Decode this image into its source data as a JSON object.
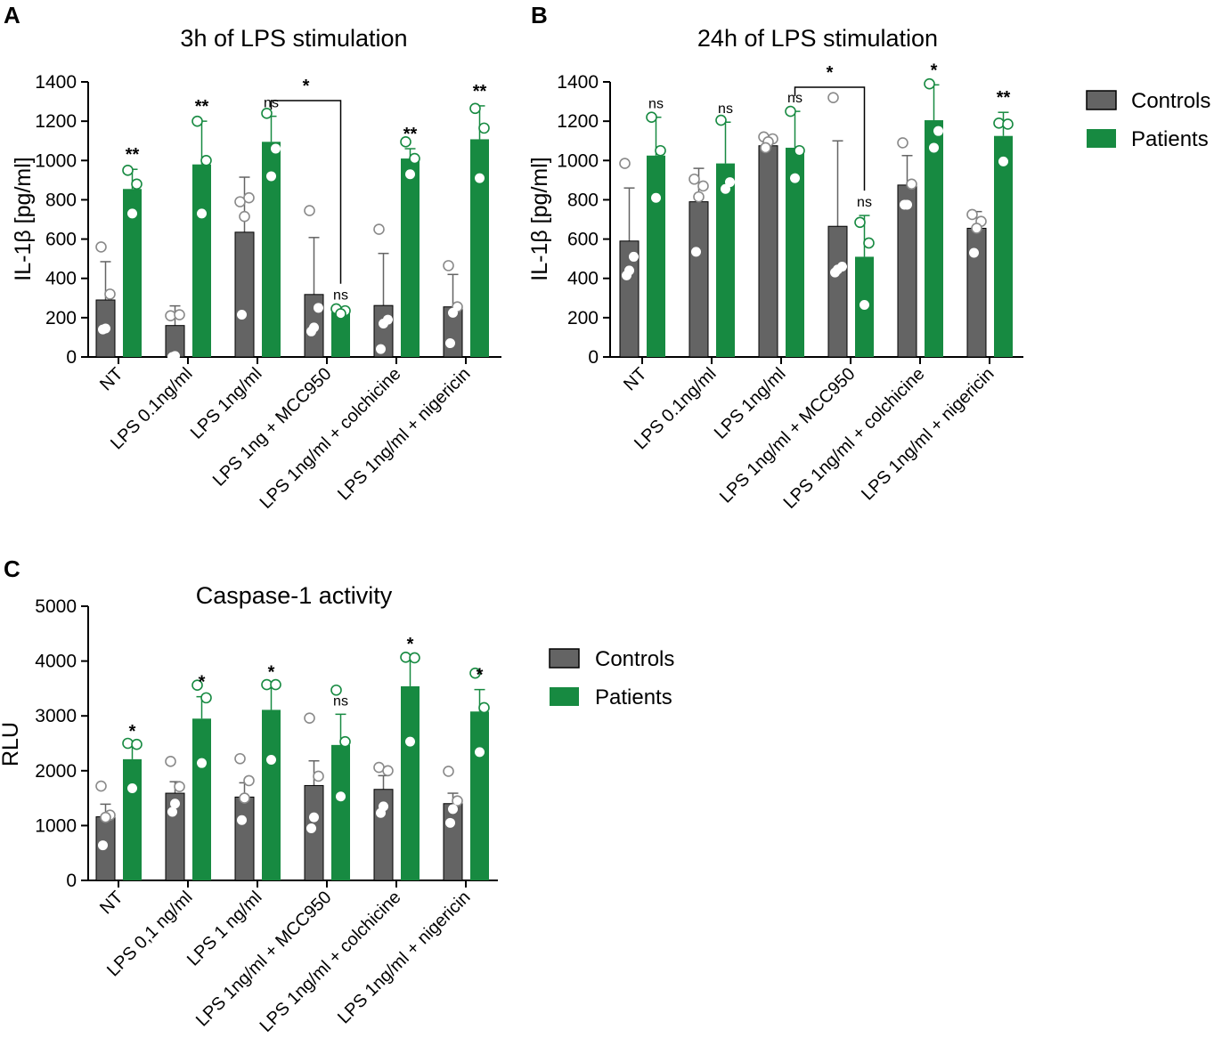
{
  "colors": {
    "controls": "#646464",
    "patients": "#178a41",
    "axis": "#000000",
    "point_open": "#ffffff"
  },
  "chart_data": [
    {
      "id": "A",
      "type": "bar",
      "panel_letter": "A",
      "title": "3h of LPS stimulation",
      "ylabel": "IL-1β [pg/ml]",
      "ylim": [
        0,
        1400
      ],
      "yticks": [
        0,
        200,
        400,
        600,
        800,
        1000,
        1200,
        1400
      ],
      "categories": [
        "NT",
        "LPS 0.1ng/ml",
        "LPS 1ng/ml",
        "LPS 1ng + MCC950",
        "LPS 1ng/ml + colchicine",
        "LPS 1ng/ml + nigericin"
      ],
      "series": [
        {
          "name": "Controls",
          "values": [
            290,
            160,
            635,
            318,
            262,
            255
          ],
          "errors": [
            195,
            100,
            280,
            290,
            265,
            165
          ],
          "points": [
            [
              560,
              320,
              145,
              140
            ],
            [
              210,
              215,
              5,
              0
            ],
            [
              790,
              810,
              715,
              215
            ],
            [
              745,
              250,
              150,
              130
            ],
            [
              650,
              190,
              170,
              40
            ],
            [
              465,
              255,
              225,
              70
            ]
          ]
        },
        {
          "name": "Patients",
          "values": [
            855,
            980,
            1095,
            228,
            1010,
            1108
          ],
          "errors": [
            100,
            220,
            130,
            18,
            50,
            170
          ],
          "points": [
            [
              950,
              880,
              730
            ],
            [
              1200,
              1000,
              730
            ],
            [
              1240,
              1060,
              920
            ],
            [
              245,
              235,
              220
            ],
            [
              1095,
              1010,
              930
            ],
            [
              1265,
              1165,
              910
            ]
          ]
        }
      ],
      "significance": [
        "**",
        "**",
        "ns",
        "ns",
        "**",
        "**"
      ],
      "bracket": {
        "from": 2,
        "to": 3,
        "label": "*"
      }
    },
    {
      "id": "B",
      "type": "bar",
      "panel_letter": "B",
      "title": "24h of LPS stimulation",
      "ylabel": "IL-1β [pg/ml]",
      "ylim": [
        0,
        1400
      ],
      "yticks": [
        0,
        200,
        400,
        600,
        800,
        1000,
        1200,
        1400
      ],
      "categories": [
        "NT",
        "LPS 0.1ng/ml",
        "LPS 1ng/ml",
        "LPS 1ng/ml + MCC950",
        "LPS 1ng/ml + colchicine",
        "LPS 1ng/ml + nigericin"
      ],
      "series": [
        {
          "name": "Controls",
          "values": [
            590,
            790,
            1075,
            665,
            875,
            655
          ],
          "errors": [
            270,
            170,
            50,
            435,
            150,
            85
          ],
          "points": [
            [
              985,
              510,
              440,
              415
            ],
            [
              905,
              870,
              815,
              535
            ],
            [
              1120,
              1110,
              1095,
              1065
            ],
            [
              1320,
              460,
              445,
              430
            ],
            [
              1090,
              880,
              775,
              775
            ],
            [
              725,
              690,
              655,
              530
            ]
          ]
        },
        {
          "name": "Patients",
          "values": [
            1025,
            985,
            1065,
            510,
            1205,
            1125
          ],
          "errors": [
            195,
            210,
            185,
            210,
            180,
            120
          ],
          "points": [
            [
              1220,
              1050,
              810
            ],
            [
              1205,
              890,
              855
            ],
            [
              1250,
              1050,
              910
            ],
            [
              685,
              580,
              265
            ],
            [
              1390,
              1150,
              1065
            ],
            [
              1190,
              1185,
              995
            ]
          ]
        }
      ],
      "significance": [
        "ns",
        "ns",
        "ns",
        "ns",
        "*",
        "**"
      ],
      "bracket": {
        "from": 2,
        "to": 3,
        "label": "*"
      }
    },
    {
      "id": "C",
      "type": "bar",
      "panel_letter": "C",
      "title": "Caspase-1 activity",
      "ylabel": "RLU",
      "ylim": [
        0,
        5000
      ],
      "yticks": [
        0,
        1000,
        2000,
        3000,
        4000,
        5000
      ],
      "categories": [
        "NT",
        "LPS 0,1 ng/ml",
        "LPS 1 ng/ml",
        "LPS 1ng/ml + MCC950",
        "LPS 1ng/ml + colchicine",
        "LPS 1ng/ml + nigericin"
      ],
      "series": [
        {
          "name": "Controls",
          "values": [
            1160,
            1590,
            1520,
            1730,
            1660,
            1400
          ],
          "errors": [
            230,
            210,
            260,
            450,
            250,
            190
          ],
          "points": [
            [
              1720,
              1190,
              1150,
              640
            ],
            [
              2170,
              1710,
              1400,
              1250
            ],
            [
              2220,
              1820,
              1500,
              1100
            ],
            [
              2960,
              1900,
              1150,
              950
            ],
            [
              2060,
              2000,
              1350,
              1230
            ],
            [
              1990,
              1450,
              1300,
              1050
            ]
          ]
        },
        {
          "name": "Patients",
          "values": [
            2210,
            2950,
            3110,
            2470,
            3540,
            3080
          ],
          "errors": [
            240,
            400,
            420,
            560,
            500,
            400
          ],
          "points": [
            [
              2500,
              2480,
              1680
            ],
            [
              3560,
              3330,
              2140
            ],
            [
              3570,
              3570,
              2200
            ],
            [
              3470,
              2530,
              1530
            ],
            [
              4070,
              4060,
              2530
            ],
            [
              3780,
              3150,
              2340
            ]
          ]
        }
      ],
      "significance": [
        "*",
        "*",
        "*",
        "ns",
        "*",
        "*"
      ]
    }
  ],
  "legends": [
    {
      "id": "legend-top",
      "items": [
        "Controls",
        "Patients"
      ]
    },
    {
      "id": "legend-bottom",
      "items": [
        "Controls",
        "Patients"
      ]
    }
  ]
}
